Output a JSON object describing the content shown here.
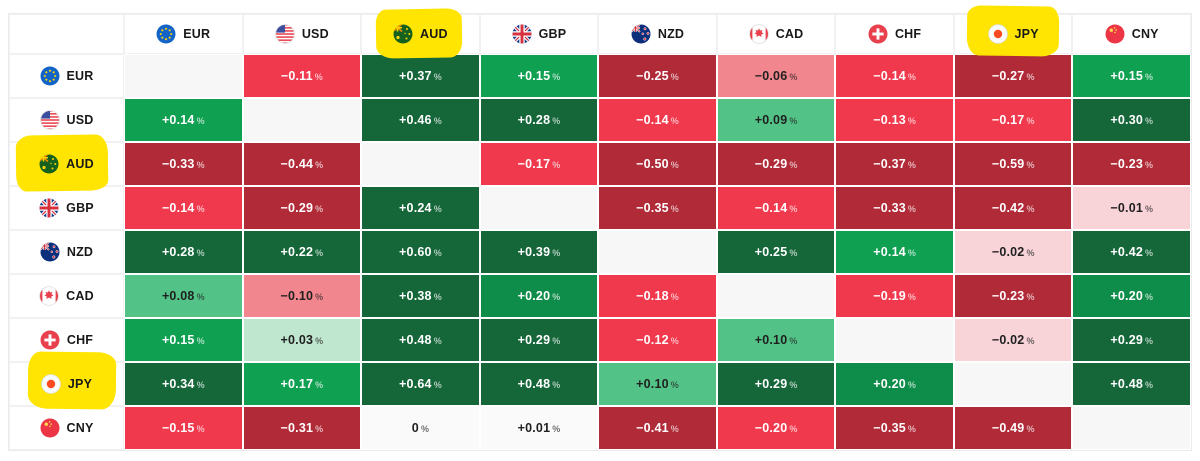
{
  "chart_data": {
    "type": "heatmap",
    "unit": "%",
    "currencies": [
      "EUR",
      "USD",
      "AUD",
      "GBP",
      "NZD",
      "CAD",
      "CHF",
      "JPY",
      "CNY"
    ],
    "rows": [
      {
        "base": "EUR",
        "values": [
          null,
          -0.11,
          0.37,
          0.15,
          -0.25,
          -0.06,
          -0.14,
          -0.27,
          0.15
        ]
      },
      {
        "base": "USD",
        "values": [
          0.14,
          null,
          0.46,
          0.28,
          -0.14,
          0.09,
          -0.13,
          -0.17,
          0.3
        ]
      },
      {
        "base": "AUD",
        "values": [
          -0.33,
          -0.44,
          null,
          -0.17,
          -0.5,
          -0.29,
          -0.37,
          -0.59,
          -0.23
        ]
      },
      {
        "base": "GBP",
        "values": [
          -0.14,
          -0.29,
          0.24,
          null,
          -0.35,
          -0.14,
          -0.33,
          -0.42,
          -0.01
        ]
      },
      {
        "base": "NZD",
        "values": [
          0.28,
          0.22,
          0.6,
          0.39,
          null,
          0.25,
          0.14,
          -0.02,
          0.42
        ]
      },
      {
        "base": "CAD",
        "values": [
          0.08,
          -0.1,
          0.38,
          0.2,
          -0.18,
          null,
          -0.19,
          -0.23,
          0.2
        ]
      },
      {
        "base": "CHF",
        "values": [
          0.15,
          0.03,
          0.48,
          0.29,
          -0.12,
          0.1,
          null,
          -0.02,
          0.29
        ]
      },
      {
        "base": "JPY",
        "values": [
          0.34,
          0.17,
          0.64,
          0.48,
          0.1,
          0.29,
          0.2,
          null,
          0.48
        ]
      },
      {
        "base": "CNY",
        "values": [
          -0.15,
          -0.31,
          0,
          0.01,
          -0.41,
          -0.2,
          -0.35,
          -0.49,
          null
        ]
      }
    ],
    "highlights": {
      "columns": [
        "AUD",
        "JPY"
      ],
      "rows": [
        "AUD",
        "JPY"
      ]
    },
    "colors": {
      "highlight_yellow": "#ffe501",
      "dark_green": "#15673a",
      "deep_green": "#0e8c49",
      "vivid_green": "#0fa052",
      "light_green": "#52c287",
      "mint_green": "#bfe7cf",
      "near_white": "#fafafa",
      "pale_pink": "#f8d3d8",
      "salmon": "#f2868e",
      "bright_red": "#f0394d",
      "dark_red": "#b02a37",
      "blank_cell": "#f7f7f7",
      "text_dark": "#1f1f1f",
      "text_light": "#ffffff"
    }
  }
}
